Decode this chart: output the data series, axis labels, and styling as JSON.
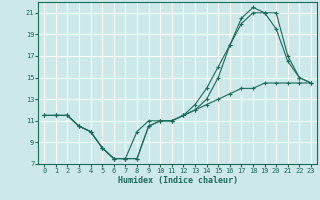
{
  "xlabel": "Humidex (Indice chaleur)",
  "ylabel": "",
  "bg_color": "#cce8e8",
  "grid_color": "#ffffff",
  "line_color": "#1a6b5a",
  "xlim": [
    -0.5,
    23.5
  ],
  "ylim": [
    7,
    22
  ],
  "xticks": [
    0,
    1,
    2,
    3,
    4,
    5,
    6,
    7,
    8,
    9,
    10,
    11,
    12,
    13,
    14,
    15,
    16,
    17,
    18,
    19,
    20,
    21,
    22,
    23
  ],
  "yticks": [
    7,
    9,
    11,
    13,
    15,
    17,
    19,
    21
  ],
  "line1_x": [
    0,
    1,
    2,
    3,
    4,
    5,
    6,
    7,
    8,
    9,
    10,
    11,
    12,
    13,
    14,
    15,
    16,
    17,
    18,
    19,
    20,
    21,
    22,
    23
  ],
  "line1_y": [
    11.5,
    11.5,
    11.5,
    10.5,
    10,
    8.5,
    7.5,
    7.5,
    7.5,
    10.5,
    11,
    11,
    11.5,
    12,
    12.5,
    13,
    13.5,
    14,
    14,
    14.5,
    14.5,
    14.5,
    14.5,
    14.5
  ],
  "line2_x": [
    0,
    1,
    2,
    3,
    4,
    5,
    6,
    7,
    8,
    9,
    10,
    11,
    12,
    13,
    14,
    15,
    16,
    17,
    18,
    19,
    20,
    21,
    22,
    23
  ],
  "line2_y": [
    11.5,
    11.5,
    11.5,
    10.5,
    10,
    8.5,
    7.5,
    7.5,
    7.5,
    10.5,
    11,
    11,
    11.5,
    12.5,
    14,
    16,
    18,
    20,
    21,
    21,
    21,
    17,
    15,
    14.5
  ],
  "line3_x": [
    0,
    1,
    2,
    3,
    4,
    5,
    6,
    7,
    8,
    9,
    10,
    11,
    12,
    13,
    14,
    15,
    16,
    17,
    18,
    19,
    20,
    21,
    22,
    23
  ],
  "line3_y": [
    11.5,
    11.5,
    11.5,
    10.5,
    10,
    8.5,
    7.5,
    7.5,
    10,
    11,
    11,
    11,
    11.5,
    12,
    13,
    15,
    18,
    20.5,
    21.5,
    21,
    19.5,
    16.5,
    15,
    14.5
  ]
}
